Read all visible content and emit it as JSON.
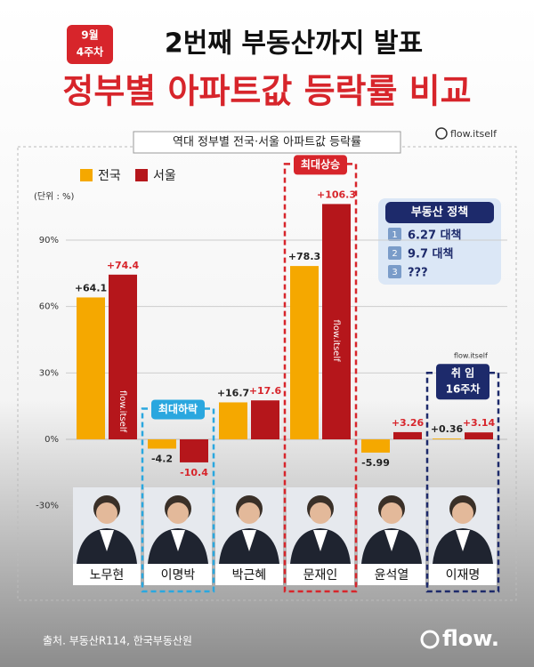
{
  "header": {
    "badge": [
      "9월",
      "4주차"
    ],
    "title": "2번째 부동산까지 발표",
    "subtitle": "정부별 아파트값 등락률 비교"
  },
  "chart_data": {
    "type": "bar",
    "title": "역대 정부별 전국·서울 아파트값 등락률",
    "unit_label": "(단위 : %)",
    "categories": [
      "노무현",
      "이명박",
      "박근혜",
      "문재인",
      "윤석열",
      "이재명"
    ],
    "series": [
      {
        "name": "전국",
        "color": "#f5a800",
        "values": [
          64.1,
          -4.2,
          16.7,
          78.3,
          -5.99,
          0.36
        ],
        "value_labels": [
          "+64.1",
          "-4.2",
          "+16.7",
          "+78.3",
          "-5.99",
          "+0.36"
        ]
      },
      {
        "name": "서울",
        "color": "#b5161b",
        "values": [
          74.4,
          -10.4,
          17.6,
          106.3,
          3.26,
          3.14
        ],
        "value_labels": [
          "+74.4",
          "-10.4",
          "+17.6",
          "+106.3",
          "+3.26",
          "+3.14"
        ]
      }
    ],
    "ylim": [
      -40,
      120
    ],
    "yticks": [
      {
        "value": -30,
        "label": "-30%"
      },
      {
        "value": 0,
        "label": "0%"
      },
      {
        "value": 30,
        "label": "30%"
      },
      {
        "value": 60,
        "label": "60%"
      },
      {
        "value": 90,
        "label": "90%"
      }
    ],
    "grid": true,
    "legend": "top-left",
    "highlights": [
      {
        "category": "이명박",
        "label": [
          "최대하락"
        ],
        "color": "#2aa7df"
      },
      {
        "category": "문재인",
        "label": [
          "최대상승"
        ],
        "color": "#d7252b"
      },
      {
        "category": "이재명",
        "label": [
          "취 임",
          "16주차"
        ],
        "color": "#1d2a6b"
      }
    ]
  },
  "policy": {
    "title": "부동산 정책",
    "items": [
      {
        "num": "1",
        "text": "6.27 대책"
      },
      {
        "num": "2",
        "text": "9.7 대책"
      },
      {
        "num": "3",
        "text": "???"
      }
    ]
  },
  "watermark": "flow.itself",
  "source": "출처. 부동산R114, 한국부동산원",
  "logo": "flow."
}
